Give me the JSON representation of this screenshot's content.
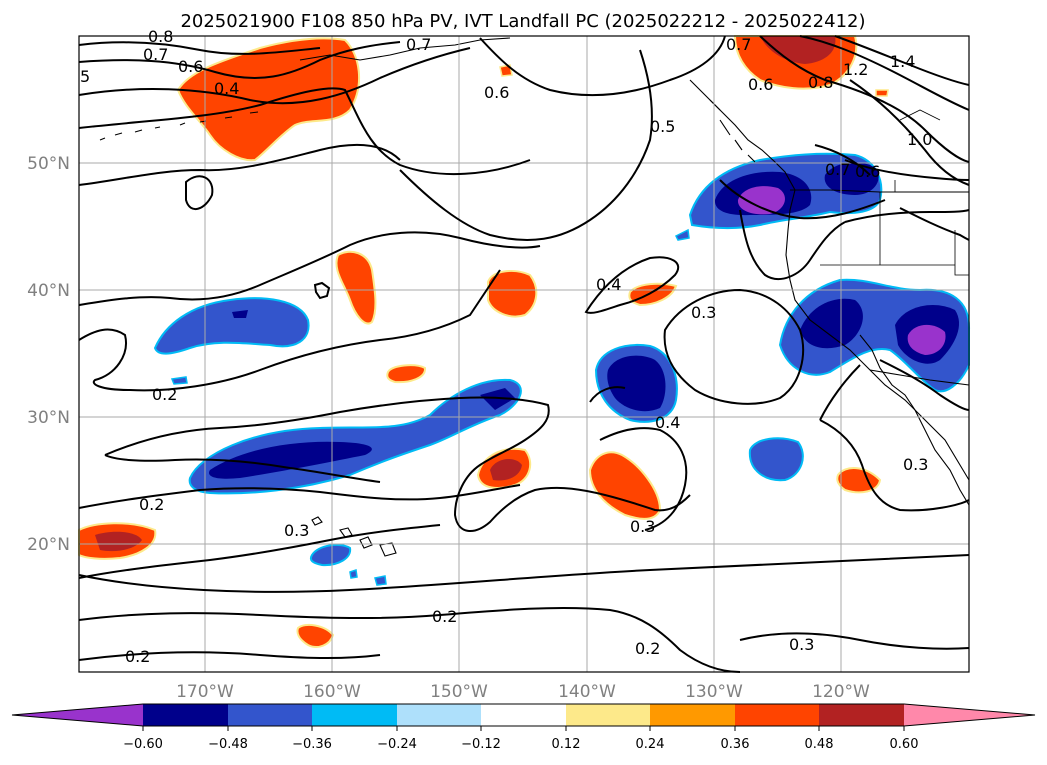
{
  "title": "2025021900 F108 850 hPa PV, IVT Landfall PC (2025022212 - 2025022412)",
  "map": {
    "lat_labels": [
      "50°N",
      "40°N",
      "30°N",
      "20°N"
    ],
    "lon_labels": [
      "170°W",
      "160°W",
      "150°W",
      "140°W",
      "130°W",
      "120°W"
    ],
    "contour_labels": [
      "0.8",
      "0.7",
      "0.6",
      "0.4",
      "5",
      "0.7",
      "0.6",
      "0.5",
      "0.7",
      "1.2",
      "1.4",
      "0.6",
      "0.8",
      "1.0",
      "0.7",
      "0.6",
      "0.4",
      "0.3",
      "0.2",
      "0.4",
      "0.3",
      "0.2",
      "0.3",
      "0.2",
      "0.2",
      "0.2",
      "0.3",
      "0.3"
    ]
  },
  "colorbar": {
    "colors": [
      "#9933cc",
      "#00008b",
      "#3355cc",
      "#00bbf5",
      "#aee0fb",
      "#ffffff",
      "#fde98a",
      "#ff9900",
      "#ff4400",
      "#b22222",
      "#ff88aa"
    ],
    "tick_labels": [
      "−0.60",
      "−0.48",
      "−0.36",
      "−0.24",
      "−0.12",
      "0.12",
      "0.24",
      "0.36",
      "0.48",
      "0.60"
    ]
  }
}
